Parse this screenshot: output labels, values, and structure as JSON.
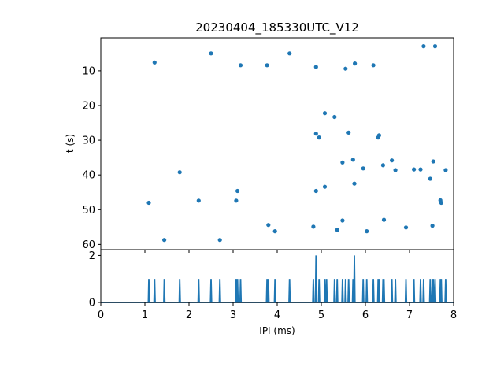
{
  "chart_data": [
    {
      "type": "scatter",
      "title": "20230404_185330UTC_V12",
      "xlabel": "",
      "ylabel": "t (s)",
      "xlim": [
        0,
        8
      ],
      "ylim": [
        0.5,
        61.5
      ],
      "y_inverted": true,
      "y_ticks": [
        10,
        20,
        30,
        40,
        50,
        60
      ],
      "x_tick_labels_visible": false,
      "color": "#1f77b4",
      "points": [
        [
          1.22,
          7.6
        ],
        [
          2.5,
          5.0
        ],
        [
          3.17,
          8.4
        ],
        [
          3.77,
          8.4
        ],
        [
          4.28,
          5.0
        ],
        [
          4.88,
          8.9
        ],
        [
          5.55,
          9.4
        ],
        [
          5.76,
          7.9
        ],
        [
          6.18,
          8.4
        ],
        [
          7.32,
          2.9
        ],
        [
          7.58,
          2.9
        ],
        [
          5.08,
          22.2
        ],
        [
          5.3,
          23.3
        ],
        [
          4.88,
          28.1
        ],
        [
          4.95,
          29.2
        ],
        [
          5.62,
          27.8
        ],
        [
          6.29,
          29.2
        ],
        [
          6.31,
          28.6
        ],
        [
          1.79,
          39.2
        ],
        [
          5.48,
          36.4
        ],
        [
          5.72,
          35.6
        ],
        [
          5.95,
          38.1
        ],
        [
          6.4,
          37.2
        ],
        [
          6.6,
          35.8
        ],
        [
          6.68,
          38.6
        ],
        [
          7.1,
          38.4
        ],
        [
          7.25,
          38.4
        ],
        [
          7.47,
          41.1
        ],
        [
          7.54,
          36.1
        ],
        [
          7.7,
          47.3
        ],
        [
          7.72,
          48.0
        ],
        [
          7.82,
          38.6
        ],
        [
          1.09,
          48.0
        ],
        [
          2.22,
          47.4
        ],
        [
          3.07,
          47.4
        ],
        [
          3.1,
          44.6
        ],
        [
          4.88,
          44.6
        ],
        [
          5.08,
          43.4
        ],
        [
          5.75,
          42.5
        ],
        [
          1.44,
          58.7
        ],
        [
          2.7,
          58.7
        ],
        [
          3.8,
          54.4
        ],
        [
          3.95,
          56.2
        ],
        [
          4.82,
          54.9
        ],
        [
          5.36,
          55.8
        ],
        [
          5.48,
          53.1
        ],
        [
          6.03,
          56.2
        ],
        [
          6.42,
          52.9
        ],
        [
          6.92,
          55.1
        ],
        [
          7.52,
          54.6
        ]
      ]
    },
    {
      "type": "line",
      "title": "",
      "xlabel": "IPI (ms)",
      "ylabel": "",
      "xlim": [
        0,
        8
      ],
      "ylim": [
        0,
        2.25
      ],
      "x_ticks": [
        0,
        1,
        2,
        3,
        4,
        5,
        6,
        7,
        8
      ],
      "y_ticks": [
        0,
        2
      ],
      "color": "#1f77b4",
      "spikes": [
        {
          "x": 1.09,
          "y": 1
        },
        {
          "x": 1.22,
          "y": 1
        },
        {
          "x": 1.44,
          "y": 1
        },
        {
          "x": 1.79,
          "y": 1
        },
        {
          "x": 2.22,
          "y": 1
        },
        {
          "x": 2.5,
          "y": 1
        },
        {
          "x": 2.7,
          "y": 1
        },
        {
          "x": 3.07,
          "y": 1
        },
        {
          "x": 3.1,
          "y": 1
        },
        {
          "x": 3.17,
          "y": 1
        },
        {
          "x": 3.77,
          "y": 1
        },
        {
          "x": 3.8,
          "y": 1
        },
        {
          "x": 3.95,
          "y": 1
        },
        {
          "x": 4.28,
          "y": 1
        },
        {
          "x": 4.82,
          "y": 1
        },
        {
          "x": 4.88,
          "y": 2
        },
        {
          "x": 4.95,
          "y": 1
        },
        {
          "x": 5.08,
          "y": 1
        },
        {
          "x": 5.12,
          "y": 1
        },
        {
          "x": 5.3,
          "y": 1
        },
        {
          "x": 5.36,
          "y": 1
        },
        {
          "x": 5.48,
          "y": 1
        },
        {
          "x": 5.55,
          "y": 1
        },
        {
          "x": 5.62,
          "y": 1
        },
        {
          "x": 5.72,
          "y": 1
        },
        {
          "x": 5.75,
          "y": 2
        },
        {
          "x": 5.95,
          "y": 1
        },
        {
          "x": 6.03,
          "y": 1
        },
        {
          "x": 6.18,
          "y": 1
        },
        {
          "x": 6.29,
          "y": 1
        },
        {
          "x": 6.31,
          "y": 1
        },
        {
          "x": 6.4,
          "y": 1
        },
        {
          "x": 6.42,
          "y": 1
        },
        {
          "x": 6.6,
          "y": 1
        },
        {
          "x": 6.68,
          "y": 1
        },
        {
          "x": 6.92,
          "y": 1
        },
        {
          "x": 7.1,
          "y": 1
        },
        {
          "x": 7.25,
          "y": 1
        },
        {
          "x": 7.32,
          "y": 1
        },
        {
          "x": 7.47,
          "y": 1
        },
        {
          "x": 7.52,
          "y": 1
        },
        {
          "x": 7.54,
          "y": 1
        },
        {
          "x": 7.58,
          "y": 1
        },
        {
          "x": 7.7,
          "y": 1
        },
        {
          "x": 7.72,
          "y": 1
        },
        {
          "x": 7.82,
          "y": 1
        }
      ]
    }
  ]
}
